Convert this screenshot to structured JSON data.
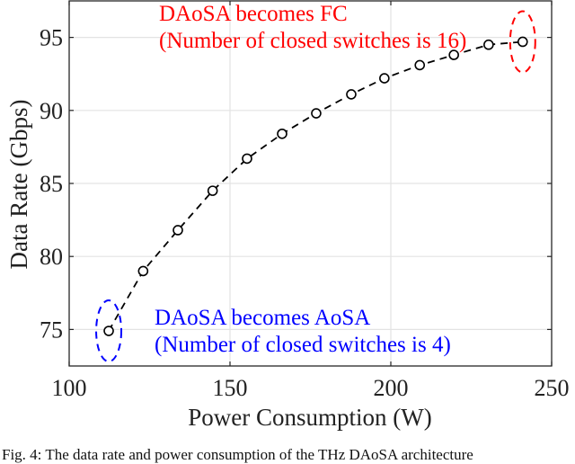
{
  "chart_data": {
    "type": "line",
    "title": "",
    "xlabel": "Power Consumption (W)",
    "ylabel": "Data Rate (Gbps)",
    "xlim": [
      100,
      250
    ],
    "ylim": [
      72.5,
      97.5
    ],
    "xticks": [
      100,
      150,
      200,
      250
    ],
    "yticks": [
      75,
      80,
      85,
      90,
      95
    ],
    "grid": true,
    "legend": null,
    "series": [
      {
        "name": "THz DAoSA",
        "style": "dashed black line with open circle markers",
        "color": "#000000",
        "x": [
          112.3,
          123.0,
          133.8,
          144.6,
          155.3,
          166.2,
          176.8,
          187.7,
          198.0,
          209.0,
          219.6,
          230.4,
          241.0
        ],
        "y": [
          74.9,
          79.0,
          81.8,
          84.5,
          86.7,
          88.4,
          89.8,
          91.1,
          92.2,
          93.1,
          93.8,
          94.5,
          94.7
        ]
      }
    ],
    "annotations": [
      {
        "id": "fc",
        "lines": [
          "DAoSA becomes FC",
          "(Number of closed switches is 16)"
        ],
        "color": "#ff0000",
        "target": {
          "x": 241.0,
          "y": 94.7
        },
        "marker": "dashed ellipse"
      },
      {
        "id": "aosa",
        "lines": [
          "DAoSA becomes AoSA",
          "(Number of closed switches is 4)"
        ],
        "color": "#0000ff",
        "target": {
          "x": 112.3,
          "y": 74.9
        },
        "marker": "dashed ellipse"
      }
    ]
  },
  "caption": "Fig. 4: The data rate and power consumption of the THz DAoSA architecture"
}
